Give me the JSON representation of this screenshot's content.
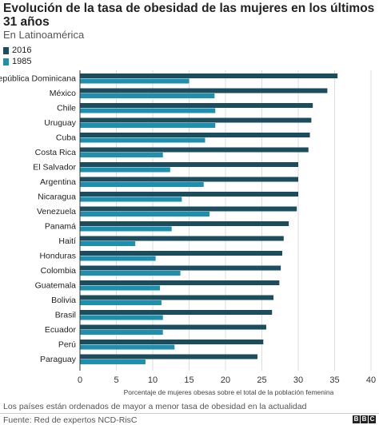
{
  "header": {
    "title": "Evolución de la tasa de obesidad de las mujeres en los últimos 31 años",
    "subtitle": "En Latinoamérica"
  },
  "footer": {
    "note": "Los países están ordenados de mayor a menor tasa de obesidad en la actualidad",
    "source": "Fuente: Red de expertos NCD-RisC",
    "logo_letters": [
      "B",
      "B",
      "C"
    ]
  },
  "colors": {
    "series_2016": "#1b4d5e",
    "series_1985": "#1f8fae",
    "grid": "#dddddd",
    "axis": "#333333"
  },
  "chart_data": {
    "type": "bar",
    "orientation": "horizontal",
    "title": "Evolución de la tasa de obesidad de las mujeres en los últimos 31 años",
    "subtitle": "En Latinoamérica",
    "xlabel": "Porcentaje de mujeres obesas sobre el total de la población femenina",
    "ylabel": "",
    "xlim": [
      0,
      40
    ],
    "xticks": [
      0,
      5,
      10,
      15,
      20,
      25,
      30,
      35,
      40
    ],
    "grid": true,
    "legend_position": "top-left",
    "categories": [
      "República Dominicana",
      "México",
      "Chile",
      "Uruguay",
      "Cuba",
      "Costa Rica",
      "El Salvador",
      "Argentina",
      "Nicaragua",
      "Venezuela",
      "Panamá",
      "Haití",
      "Honduras",
      "Colombia",
      "Guatemala",
      "Bolivia",
      "Brasil",
      "Ecuador",
      "Perú",
      "Paraguay"
    ],
    "series": [
      {
        "name": "2016",
        "values": [
          35.4,
          34.0,
          32.0,
          31.8,
          31.6,
          31.4,
          30.0,
          30.0,
          30.0,
          29.8,
          28.7,
          28.0,
          27.8,
          27.6,
          27.4,
          26.6,
          26.4,
          25.6,
          25.2,
          24.4
        ]
      },
      {
        "name": "1985",
        "values": [
          15.0,
          18.5,
          18.6,
          18.6,
          17.2,
          11.4,
          12.4,
          17.0,
          14.0,
          17.8,
          12.6,
          7.6,
          10.4,
          13.8,
          11.0,
          11.2,
          11.4,
          11.4,
          13.0,
          9.0
        ]
      }
    ]
  }
}
